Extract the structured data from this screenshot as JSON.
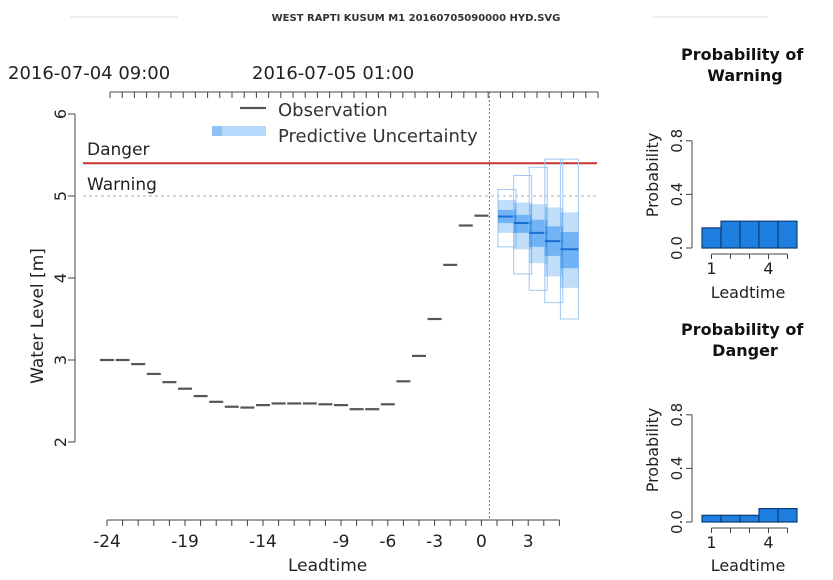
{
  "page": {
    "header": "WEST RAPTI KUSUM M1 20160705090000 HYD.SVG"
  },
  "colors": {
    "observation": "#555555",
    "uncertainty": "#2f8ff0",
    "danger_line": "#c83232",
    "warning_line": "#bbbbbb",
    "bar_fill": "#1f7fe0",
    "bar_stroke": "#0a3f7a"
  },
  "chart_data": [
    {
      "type": "line",
      "top_axis_labels": [
        "2016-07-04 09:00",
        "2016-07-05 01:00"
      ],
      "xlabel": "Leadtime",
      "ylabel": "Water Level [m]",
      "xlim": [
        -25,
        6
      ],
      "ylim": [
        2,
        6
      ],
      "yticks": [
        2,
        3,
        4,
        5,
        6
      ],
      "xticks": [
        -24,
        -19,
        -14,
        -9,
        -6,
        -3,
        0,
        3
      ],
      "legend": {
        "placement": "top-center",
        "entries": [
          "Observation",
          "Predictive Uncertainty"
        ]
      },
      "thresholds": [
        {
          "label": "Danger",
          "value": 5.4
        },
        {
          "label": "Warning",
          "value": 5.0
        }
      ],
      "now": 0,
      "series": [
        {
          "name": "Observation",
          "x": [
            -24,
            -23,
            -22,
            -21,
            -20,
            -19,
            -18,
            -17,
            -16,
            -15,
            -14,
            -13,
            -12,
            -11,
            -10,
            -9,
            -8,
            -7,
            -6,
            -5,
            -4,
            -3,
            -2,
            -1,
            0
          ],
          "y": [
            3.0,
            3.0,
            2.95,
            2.83,
            2.73,
            2.65,
            2.56,
            2.49,
            2.43,
            2.42,
            2.45,
            2.47,
            2.47,
            2.47,
            2.46,
            2.45,
            2.4,
            2.4,
            2.46,
            2.74,
            3.05,
            3.5,
            4.16,
            4.64,
            4.76
          ]
        },
        {
          "name": "Predictive Uncertainty",
          "x": [
            1,
            2,
            3,
            4,
            5
          ],
          "median": [
            4.75,
            4.67,
            4.55,
            4.45,
            4.35
          ],
          "q25": [
            4.67,
            4.55,
            4.38,
            4.27,
            4.12
          ],
          "q75": [
            4.83,
            4.77,
            4.71,
            4.63,
            4.56
          ],
          "q05": [
            4.55,
            4.35,
            4.18,
            4.02,
            3.88
          ],
          "q95": [
            4.95,
            4.92,
            4.9,
            4.86,
            4.8
          ],
          "min": [
            4.38,
            4.05,
            3.85,
            3.7,
            3.5
          ],
          "max": [
            5.08,
            5.25,
            5.35,
            5.45,
            5.45
          ]
        }
      ]
    },
    {
      "type": "bar",
      "title": "Probability of Warning",
      "xlabel": "Leadtime",
      "ylabel": "Probability",
      "categories": [
        1,
        2,
        3,
        4,
        5
      ],
      "xtick_labels": [
        "1",
        "4"
      ],
      "yticks": [
        "0.0",
        "0.4",
        "0.8"
      ],
      "ylim": [
        0,
        1
      ],
      "values": [
        0.15,
        0.2,
        0.2,
        0.2,
        0.2
      ]
    },
    {
      "type": "bar",
      "title": "Probability of Danger",
      "xlabel": "Leadtime",
      "ylabel": "Probability",
      "categories": [
        1,
        2,
        3,
        4,
        5
      ],
      "xtick_labels": [
        "1",
        "4"
      ],
      "yticks": [
        "0.0",
        "0.4",
        "0.8"
      ],
      "ylim": [
        0,
        1
      ],
      "values": [
        0.05,
        0.05,
        0.05,
        0.1,
        0.1
      ]
    }
  ]
}
